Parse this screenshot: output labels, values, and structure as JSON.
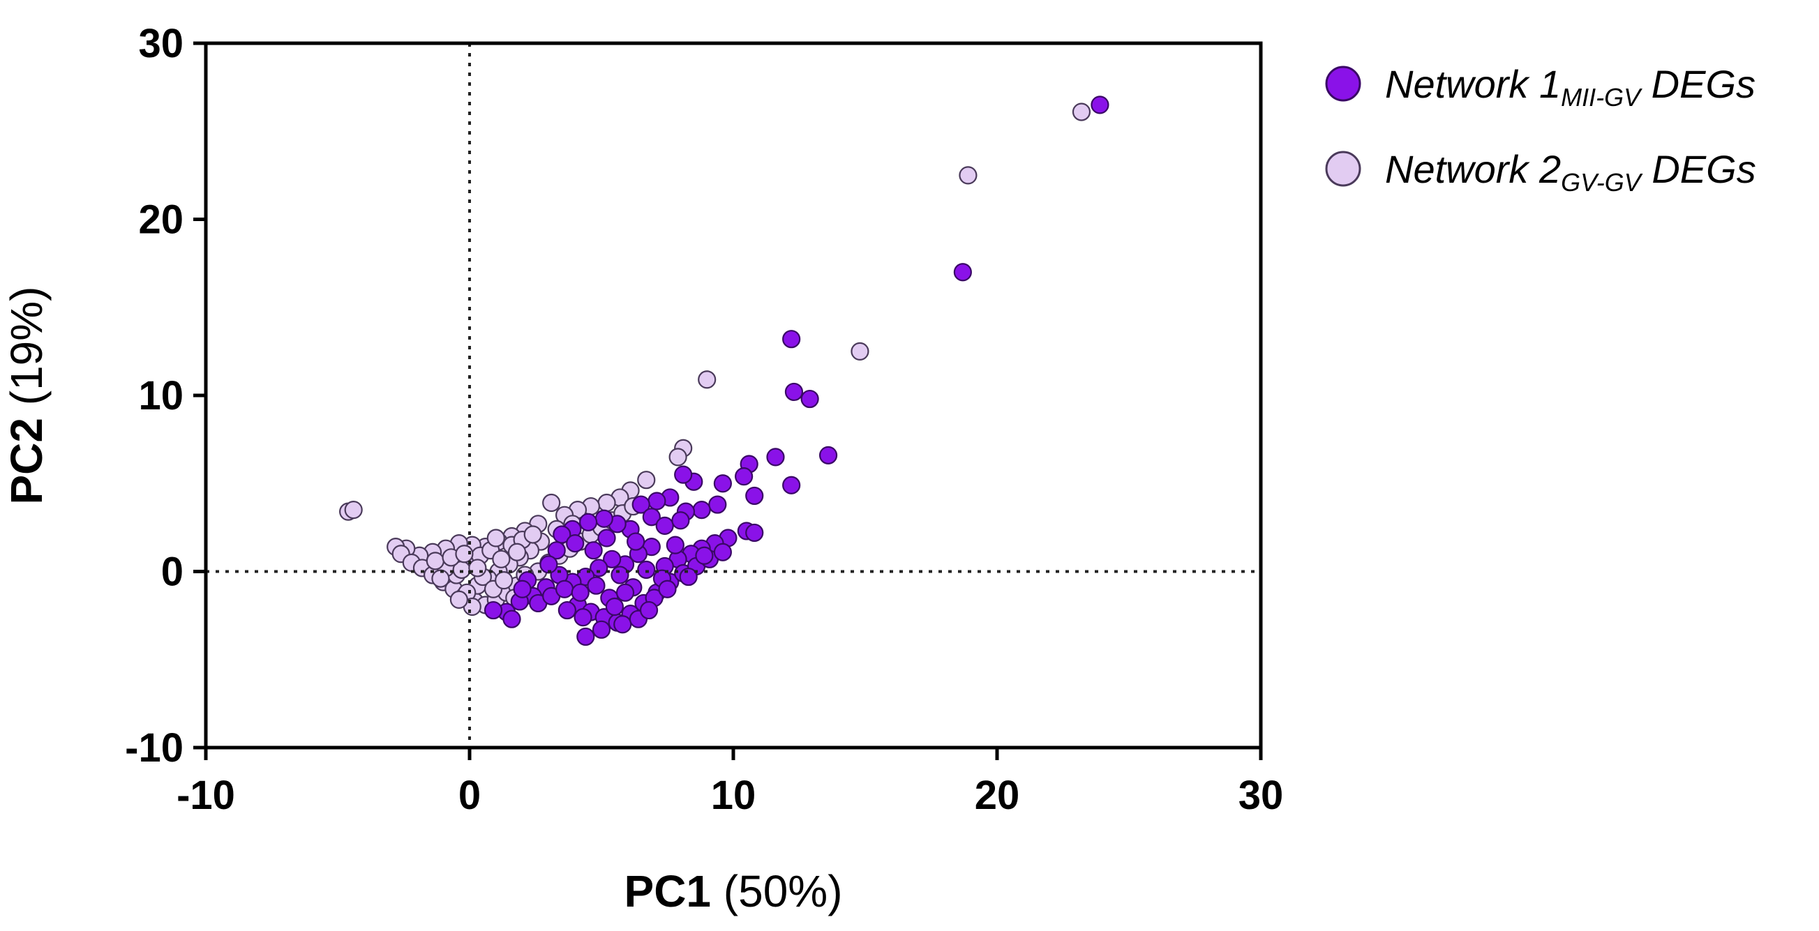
{
  "chart_data": {
    "type": "scatter",
    "title": "",
    "xlabel": {
      "bold": "PC1",
      "normal": " (50%)"
    },
    "ylabel": {
      "bold": "PC2",
      "normal": " (19%)"
    },
    "xlim": [
      -10,
      30
    ],
    "ylim": [
      -10,
      30
    ],
    "xticks": [
      -10,
      0,
      10,
      20,
      30
    ],
    "yticks": [
      -10,
      0,
      10,
      20,
      30
    ],
    "xtick_labels": [
      "-10",
      "0",
      "10",
      "20",
      "30"
    ],
    "ytick_labels": [
      "-10",
      "0",
      "10",
      "20",
      "30"
    ],
    "reference_lines": {
      "x": 0,
      "y": 0,
      "style": "dotted"
    },
    "grid": false,
    "legend": {
      "placement": "top-right-outside"
    },
    "series": [
      {
        "name": "Network 1",
        "name_main": "Network 1",
        "name_sub": "MII-GV",
        "name_suffix": " DEGs",
        "color": "#8a12e8",
        "edge": "#3a0866",
        "points": [
          [
            23.9,
            26.5
          ],
          [
            18.7,
            17.0
          ],
          [
            12.2,
            13.2
          ],
          [
            12.3,
            10.2
          ],
          [
            12.9,
            9.8
          ],
          [
            13.6,
            6.6
          ],
          [
            11.6,
            6.5
          ],
          [
            10.6,
            6.1
          ],
          [
            10.4,
            5.4
          ],
          [
            12.2,
            4.9
          ],
          [
            9.6,
            5.0
          ],
          [
            8.5,
            5.1
          ],
          [
            8.1,
            5.5
          ],
          [
            10.8,
            4.3
          ],
          [
            9.4,
            3.8
          ],
          [
            8.8,
            3.5
          ],
          [
            8.2,
            3.4
          ],
          [
            7.6,
            4.2
          ],
          [
            7.1,
            4.0
          ],
          [
            6.5,
            3.8
          ],
          [
            6.9,
            3.1
          ],
          [
            7.4,
            2.6
          ],
          [
            8.0,
            2.9
          ],
          [
            6.1,
            2.4
          ],
          [
            5.6,
            2.7
          ],
          [
            5.1,
            3.0
          ],
          [
            4.5,
            2.8
          ],
          [
            3.9,
            2.4
          ],
          [
            3.5,
            2.1
          ],
          [
            10.5,
            2.3
          ],
          [
            10.8,
            2.2
          ],
          [
            9.8,
            1.9
          ],
          [
            9.3,
            1.6
          ],
          [
            8.8,
            1.3
          ],
          [
            8.4,
            1.0
          ],
          [
            7.9,
            0.7
          ],
          [
            7.4,
            0.3
          ],
          [
            6.9,
            1.4
          ],
          [
            6.4,
            1.0
          ],
          [
            5.9,
            0.4
          ],
          [
            5.4,
            0.7
          ],
          [
            4.9,
            0.2
          ],
          [
            4.4,
            -0.3
          ],
          [
            3.9,
            -0.6
          ],
          [
            3.4,
            -0.2
          ],
          [
            2.9,
            -0.9
          ],
          [
            2.4,
            -1.4
          ],
          [
            1.9,
            -1.7
          ],
          [
            1.4,
            -2.3
          ],
          [
            0.9,
            -2.2
          ],
          [
            1.6,
            -2.7
          ],
          [
            2.6,
            -1.8
          ],
          [
            3.1,
            -1.4
          ],
          [
            3.6,
            -1.0
          ],
          [
            4.1,
            -1.9
          ],
          [
            4.6,
            -2.3
          ],
          [
            5.1,
            -2.6
          ],
          [
            5.6,
            -2.9
          ],
          [
            6.1,
            -2.4
          ],
          [
            6.6,
            -1.8
          ],
          [
            7.1,
            -1.2
          ],
          [
            7.6,
            -0.6
          ],
          [
            8.1,
            -0.1
          ],
          [
            8.6,
            0.3
          ],
          [
            9.1,
            0.7
          ],
          [
            9.6,
            1.1
          ],
          [
            4.4,
            -3.7
          ],
          [
            5.0,
            -3.3
          ],
          [
            5.8,
            -3.0
          ],
          [
            6.4,
            -2.7
          ],
          [
            7.0,
            -1.5
          ],
          [
            4.2,
            -1.2
          ],
          [
            5.3,
            -1.5
          ],
          [
            6.2,
            -0.9
          ],
          [
            7.3,
            -0.4
          ],
          [
            4.8,
            -0.8
          ],
          [
            5.7,
            -0.2
          ],
          [
            6.7,
            0.1
          ],
          [
            3.3,
            1.2
          ],
          [
            4.0,
            1.6
          ],
          [
            4.7,
            1.2
          ],
          [
            5.2,
            1.9
          ],
          [
            6.3,
            1.7
          ],
          [
            7.8,
            1.5
          ],
          [
            8.9,
            0.9
          ],
          [
            3.0,
            0.4
          ],
          [
            2.2,
            -0.5
          ],
          [
            2.0,
            -1.0
          ],
          [
            5.5,
            -2.0
          ],
          [
            6.8,
            -2.2
          ],
          [
            7.5,
            -1.0
          ],
          [
            8.3,
            -0.3
          ],
          [
            4.3,
            -2.6
          ],
          [
            3.7,
            -2.2
          ],
          [
            5.9,
            -1.2
          ]
        ]
      },
      {
        "name": "Network 2",
        "name_main": "Network 2",
        "name_sub": "GV-GV",
        "name_suffix": " DEGs",
        "color": "#e2ccf2",
        "edge": "#4a3a5a",
        "points": [
          [
            23.2,
            26.1
          ],
          [
            18.9,
            22.5
          ],
          [
            14.8,
            12.5
          ],
          [
            9.0,
            10.9
          ],
          [
            8.1,
            7.0
          ],
          [
            7.9,
            6.5
          ],
          [
            6.7,
            5.2
          ],
          [
            6.1,
            4.6
          ],
          [
            5.7,
            4.2
          ],
          [
            5.2,
            3.9
          ],
          [
            4.6,
            3.7
          ],
          [
            4.1,
            3.5
          ],
          [
            3.6,
            3.2
          ],
          [
            3.1,
            3.9
          ],
          [
            2.6,
            2.7
          ],
          [
            2.1,
            2.3
          ],
          [
            1.6,
            2.0
          ],
          [
            1.1,
            1.7
          ],
          [
            0.6,
            1.4
          ],
          [
            0.1,
            1.5
          ],
          [
            -0.4,
            1.6
          ],
          [
            -0.9,
            1.3
          ],
          [
            -1.4,
            1.1
          ],
          [
            -1.9,
            0.9
          ],
          [
            -2.4,
            1.3
          ],
          [
            -2.8,
            1.4
          ],
          [
            -2.6,
            1.0
          ],
          [
            -2.2,
            0.5
          ],
          [
            -1.8,
            0.2
          ],
          [
            -1.4,
            -0.2
          ],
          [
            -1.0,
            -0.6
          ],
          [
            -0.6,
            -1.0
          ],
          [
            -0.2,
            -1.4
          ],
          [
            0.2,
            -1.7
          ],
          [
            0.6,
            -1.9
          ],
          [
            1.0,
            -1.6
          ],
          [
            1.4,
            -1.2
          ],
          [
            1.8,
            -0.8
          ],
          [
            2.2,
            -0.4
          ],
          [
            2.6,
            0.0
          ],
          [
            3.0,
            0.5
          ],
          [
            3.4,
            0.9
          ],
          [
            3.8,
            1.3
          ],
          [
            4.2,
            1.7
          ],
          [
            4.6,
            2.1
          ],
          [
            5.0,
            2.5
          ],
          [
            5.4,
            2.9
          ],
          [
            5.8,
            3.3
          ],
          [
            6.2,
            3.7
          ],
          [
            2.7,
            1.7
          ],
          [
            2.3,
            1.2
          ],
          [
            1.9,
            0.8
          ],
          [
            1.5,
            0.4
          ],
          [
            1.1,
            0.0
          ],
          [
            0.7,
            -0.4
          ],
          [
            0.3,
            -0.8
          ],
          [
            -0.1,
            -1.2
          ],
          [
            -0.5,
            -0.2
          ],
          [
            -0.9,
            0.2
          ],
          [
            -1.3,
            0.6
          ],
          [
            0.0,
            0.5
          ],
          [
            0.4,
            0.9
          ],
          [
            0.8,
            1.2
          ],
          [
            1.2,
            0.7
          ],
          [
            1.6,
            1.5
          ],
          [
            2.0,
            1.8
          ],
          [
            2.4,
            2.1
          ],
          [
            -0.3,
            0.1
          ],
          [
            0.5,
            -0.3
          ],
          [
            -0.7,
            0.8
          ],
          [
            0.9,
            -1.0
          ],
          [
            1.3,
            -0.5
          ],
          [
            0.1,
            -2.0
          ],
          [
            -0.4,
            -1.6
          ],
          [
            1.7,
            -1.5
          ],
          [
            2.1,
            -0.2
          ],
          [
            3.3,
            2.4
          ],
          [
            3.9,
            2.7
          ],
          [
            -4.6,
            3.4
          ],
          [
            -4.4,
            3.5
          ],
          [
            -0.2,
            1.0
          ],
          [
            0.3,
            0.2
          ],
          [
            1.0,
            1.9
          ],
          [
            1.8,
            1.1
          ],
          [
            -1.1,
            -0.4
          ]
        ]
      }
    ]
  }
}
